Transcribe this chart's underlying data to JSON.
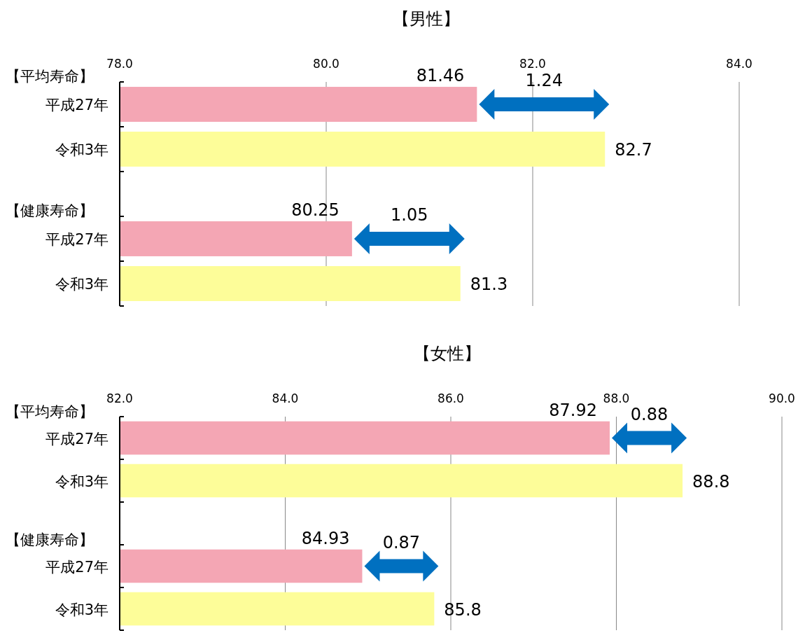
{
  "chart_data": [
    {
      "type": "bar",
      "orientation": "horizontal",
      "title": "【男性】",
      "categories": [
        "平成27年",
        "令和3年",
        "平成27年",
        "令和3年"
      ],
      "values": [
        81.46,
        82.7,
        80.25,
        81.3
      ],
      "colors": [
        "#f4a6b4",
        "#fdfd99",
        "#f4a6b4",
        "#fdfd99"
      ],
      "data_labels": true,
      "xlim": [
        78,
        84
      ],
      "xticks": [
        {
          "value": 78,
          "label": "78.0"
        },
        {
          "value": 80,
          "label": "80.0"
        },
        {
          "value": 82,
          "label": "82.0"
        },
        {
          "value": 84,
          "label": "84.0"
        }
      ],
      "grid": "x",
      "annotations": [
        "【平均寿命】",
        "【健康寿命】",
        "1.24",
        "1.05"
      ]
    },
    {
      "type": "bar",
      "orientation": "horizontal",
      "title": "【女性】",
      "categories": [
        "平成27年",
        "令和3年",
        "平成27年",
        "令和3年"
      ],
      "values": [
        87.92,
        88.8,
        84.93,
        85.8
      ],
      "colors": [
        "#f4a6b4",
        "#fdfd99",
        "#f4a6b4",
        "#fdfd99"
      ],
      "data_labels": true,
      "xlim": [
        82,
        90
      ],
      "xticks": [
        {
          "value": 82,
          "label": "82.0"
        },
        {
          "value": 84,
          "label": "84.0"
        },
        {
          "value": 86,
          "label": "86.0"
        },
        {
          "value": 88,
          "label": "88.0"
        },
        {
          "value": 90,
          "label": "90.0"
        }
      ],
      "grid": "x",
      "annotations": [
        "【平均寿命】",
        "【健康寿命】",
        "0.88",
        "0.87"
      ]
    }
  ]
}
